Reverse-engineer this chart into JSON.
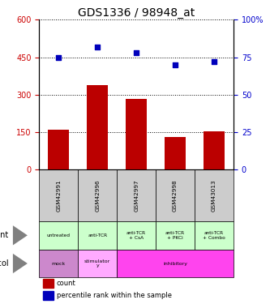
{
  "title": "GDS1336 / 98948_at",
  "categories": [
    "GSM42991",
    "GSM42996",
    "GSM42997",
    "GSM42998",
    "GSM43013"
  ],
  "counts": [
    160,
    340,
    285,
    130,
    155
  ],
  "percentiles": [
    75,
    82,
    78,
    70,
    72
  ],
  "ylim_left": [
    0,
    600
  ],
  "ylim_right": [
    0,
    100
  ],
  "yticks_left": [
    0,
    150,
    300,
    450,
    600
  ],
  "yticks_right": [
    0,
    25,
    50,
    75,
    100
  ],
  "ytick_right_labels": [
    "0",
    "25",
    "50",
    "75",
    "100%"
  ],
  "bar_color": "#bb0000",
  "dot_color": "#0000bb",
  "agent_labels": [
    "untreated",
    "anti-TCR",
    "anti-TCR\n+ CsA",
    "anti-TCR\n+ PKCi",
    "anti-TCR\n+ Combo"
  ],
  "agent_bg": "#ccffcc",
  "protocol_configs": [
    [
      0,
      1,
      "#cc88cc",
      "mock"
    ],
    [
      1,
      2,
      "#ffaaff",
      "stimulator\ny"
    ],
    [
      2,
      5,
      "#ff44ee",
      "inhibitory"
    ]
  ],
  "gsm_bg": "#cccccc",
  "title_fontsize": 10,
  "tick_fontsize": 7,
  "left_ytick_color": "#cc0000",
  "right_ytick_color": "#0000cc"
}
